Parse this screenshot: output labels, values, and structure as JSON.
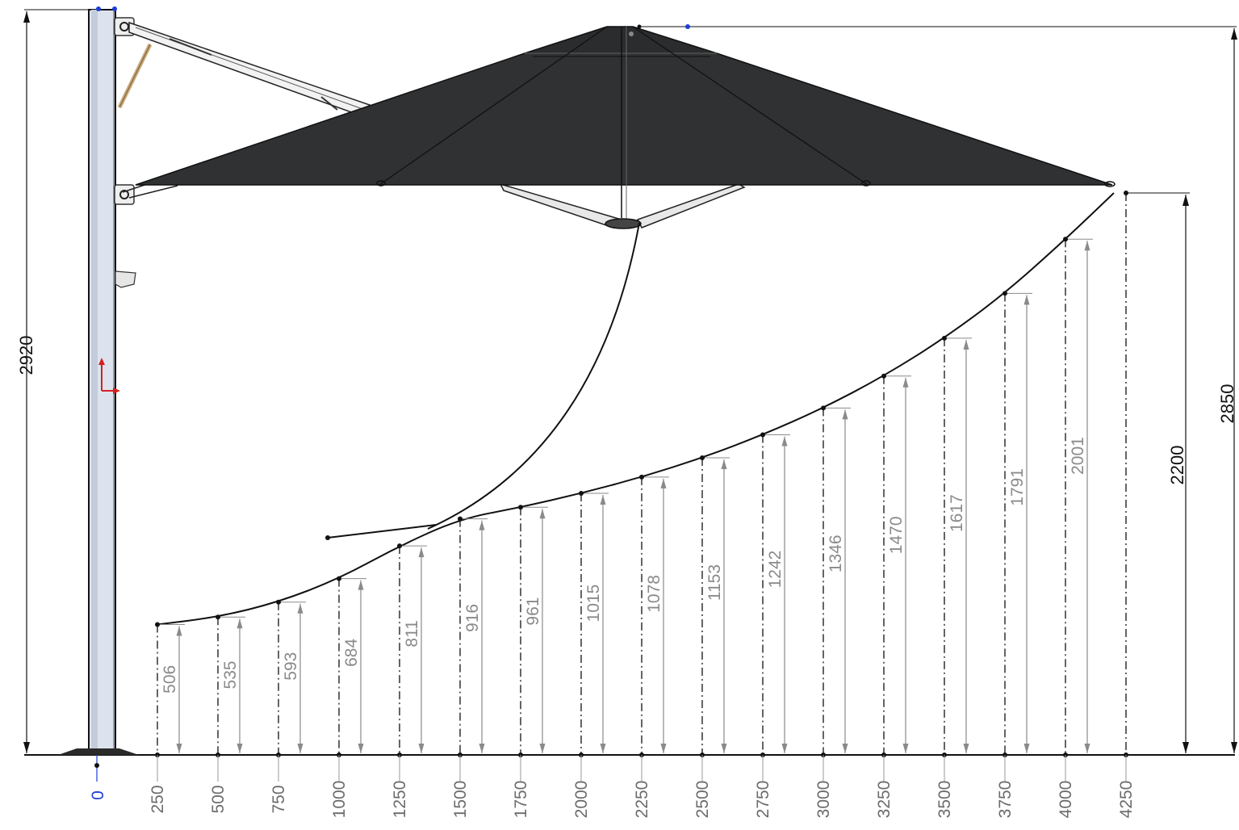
{
  "drawing": {
    "overall_height_label": "2920",
    "canopy_top_label": "2850",
    "canopy_edge_label": "2200",
    "origin_label": "0",
    "x_ticks": [
      "250",
      "500",
      "750",
      "1000",
      "1250",
      "1500",
      "1750",
      "2000",
      "2250",
      "2500",
      "2750",
      "3000",
      "3250",
      "3500",
      "3750",
      "4000",
      "4250"
    ],
    "clearance_points": [
      {
        "x": 250,
        "h": 506,
        "label": "506"
      },
      {
        "x": 500,
        "h": 535,
        "label": "535"
      },
      {
        "x": 750,
        "h": 593,
        "label": "593"
      },
      {
        "x": 1000,
        "h": 684,
        "label": "684"
      },
      {
        "x": 1250,
        "h": 811,
        "label": "811"
      },
      {
        "x": 1500,
        "h": 916,
        "label": "916"
      },
      {
        "x": 1750,
        "h": 961,
        "label": "961"
      },
      {
        "x": 2000,
        "h": 1015,
        "label": "1015"
      },
      {
        "x": 2250,
        "h": 1078,
        "label": "1078"
      },
      {
        "x": 2500,
        "h": 1153,
        "label": "1153"
      },
      {
        "x": 2750,
        "h": 1242,
        "label": "1242"
      },
      {
        "x": 3000,
        "h": 1346,
        "label": "1346"
      },
      {
        "x": 3250,
        "h": 1470,
        "label": "1470"
      },
      {
        "x": 3500,
        "h": 1617,
        "label": "1617"
      },
      {
        "x": 3750,
        "h": 1791,
        "label": "1791"
      },
      {
        "x": 4000,
        "h": 2001,
        "label": "2001"
      }
    ],
    "colors": {
      "canopy": "#2f3132",
      "line": "#111111",
      "dim_grey": "#8a8a8a",
      "origin_blue": "#1a3fd6",
      "axis_red": "#d42020",
      "pole_face": "#dde3ee"
    }
  }
}
